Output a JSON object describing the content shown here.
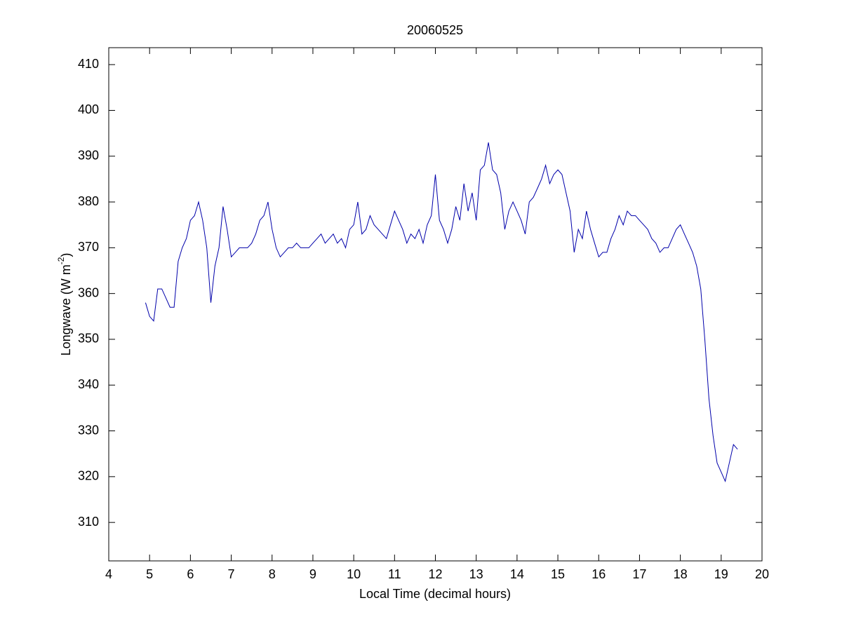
{
  "chart_data": {
    "type": "line",
    "title": "20060525",
    "xlabel": "Local Time (decimal hours)",
    "ylabel": {
      "text": "Longwave (W m",
      "sup": "-2",
      "end": ")"
    },
    "xlim": [
      4,
      20
    ],
    "xticks": [
      4,
      5,
      6,
      7,
      8,
      9,
      10,
      11,
      12,
      13,
      14,
      15,
      16,
      17,
      18,
      19,
      20
    ],
    "ylim": [
      301.6,
      413.7
    ],
    "yticks": [
      310,
      320,
      330,
      340,
      350,
      360,
      370,
      380,
      390,
      400,
      410
    ],
    "x": [
      4.9,
      5.0,
      5.1,
      5.2,
      5.3,
      5.4,
      5.5,
      5.6,
      5.7,
      5.8,
      5.9,
      6.0,
      6.1,
      6.2,
      6.3,
      6.4,
      6.5,
      6.6,
      6.7,
      6.8,
      6.9,
      7.0,
      7.1,
      7.2,
      7.3,
      7.4,
      7.5,
      7.6,
      7.7,
      7.8,
      7.9,
      8.0,
      8.1,
      8.2,
      8.3,
      8.4,
      8.5,
      8.6,
      8.7,
      8.8,
      8.9,
      9.0,
      9.1,
      9.2,
      9.3,
      9.4,
      9.5,
      9.6,
      9.7,
      9.8,
      9.9,
      10.0,
      10.1,
      10.2,
      10.3,
      10.4,
      10.5,
      10.6,
      10.7,
      10.8,
      10.9,
      11.0,
      11.1,
      11.2,
      11.3,
      11.4,
      11.5,
      11.6,
      11.7,
      11.8,
      11.9,
      12.0,
      12.1,
      12.2,
      12.3,
      12.4,
      12.5,
      12.6,
      12.7,
      12.8,
      12.9,
      13.0,
      13.1,
      13.2,
      13.3,
      13.4,
      13.5,
      13.6,
      13.7,
      13.8,
      13.9,
      14.0,
      14.1,
      14.2,
      14.3,
      14.4,
      14.5,
      14.6,
      14.7,
      14.8,
      14.9,
      15.0,
      15.1,
      15.2,
      15.3,
      15.4,
      15.5,
      15.6,
      15.7,
      15.8,
      15.9,
      16.0,
      16.1,
      16.2,
      16.3,
      16.4,
      16.5,
      16.6,
      16.7,
      16.8,
      16.9,
      17.0,
      17.1,
      17.2,
      17.3,
      17.4,
      17.5,
      17.6,
      17.7,
      17.8,
      17.9,
      18.0,
      18.1,
      18.2,
      18.3,
      18.4,
      18.5,
      18.6,
      18.7,
      18.8,
      18.9,
      19.0,
      19.1,
      19.2,
      19.3,
      19.4
    ],
    "series": [
      {
        "color": "#0000aa",
        "values": [
          358,
          355,
          354,
          361,
          361,
          359,
          357,
          357,
          367,
          370,
          372,
          376,
          377,
          380,
          376,
          370,
          358,
          366,
          370,
          379,
          374,
          368,
          369,
          370,
          370,
          370,
          371,
          373,
          376,
          377,
          380,
          374,
          370,
          368,
          369,
          370,
          370,
          371,
          370,
          370,
          370,
          371,
          372,
          373,
          371,
          372,
          373,
          371,
          372,
          370,
          374,
          375,
          380,
          373,
          374,
          377,
          375,
          374,
          373,
          372,
          375,
          378,
          376,
          374,
          371,
          373,
          372,
          374,
          371,
          375,
          377,
          386,
          376,
          374,
          371,
          374,
          379,
          376,
          384,
          378,
          382,
          376,
          387,
          388,
          393,
          387,
          386,
          382,
          374,
          378,
          380,
          378,
          376,
          373,
          380,
          381,
          383,
          385,
          388,
          384,
          386,
          387,
          386,
          382,
          378,
          369,
          374,
          372,
          378,
          374,
          371,
          368,
          369,
          369,
          372,
          374,
          377,
          375,
          378,
          377,
          377,
          376,
          375,
          374,
          372,
          371,
          369,
          370,
          370,
          372,
          374,
          375,
          373,
          371,
          369,
          366,
          361,
          350,
          337,
          329,
          323,
          321,
          319,
          323,
          327,
          326
        ]
      }
    ]
  }
}
